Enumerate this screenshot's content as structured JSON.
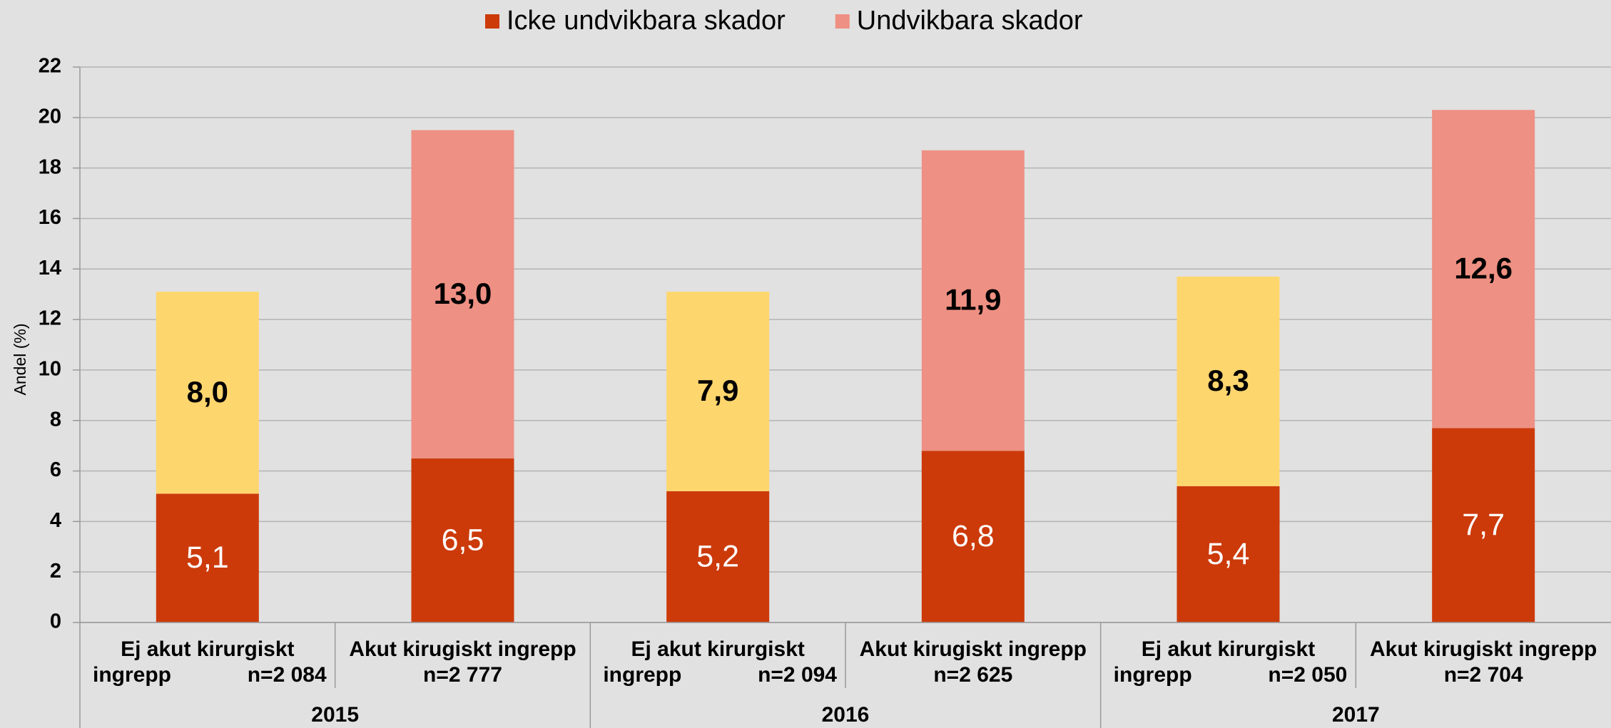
{
  "chart_data": {
    "type": "stacked_bar",
    "categories": [
      [
        "Ej akut kirurgiskt",
        "ingrepp",
        "n=2 084"
      ],
      [
        "Akut kirugiskt ingrepp",
        "n=2 777"
      ],
      [
        "Ej akut kirurgiskt",
        "ingrepp",
        "n=2 094"
      ],
      [
        "Akut kirugiskt ingrepp",
        "n=2 625"
      ],
      [
        "Ej akut kirurgiskt",
        "ingrepp",
        "n=2 050"
      ],
      [
        "Akut kirugiskt ingrepp",
        "n=2 704"
      ]
    ],
    "groups": [
      "2015",
      "2016",
      "2017"
    ],
    "y_label": "Andel (%)",
    "series": [
      {
        "name": "Icke undvikbara skador",
        "color": "#cc3a0a",
        "values": [
          5.1,
          6.5,
          5.2,
          6.8,
          5.4,
          7.7
        ],
        "value_labels": [
          "5,1",
          "6,5",
          "5,2",
          "6,8",
          "5,4",
          "7,7"
        ]
      },
      {
        "name": "Undvikbara skador",
        "color": "#ee9083",
        "colors": [
          "#fed66e",
          "#ee9083",
          "#fed66e",
          "#ee9083",
          "#fed66e",
          "#ee9083"
        ],
        "values": [
          8.0,
          13.0,
          7.9,
          11.9,
          8.3,
          12.6
        ],
        "value_labels": [
          "8,0",
          "13,0",
          "7,9",
          "11,9",
          "8,3",
          "12,6"
        ]
      }
    ],
    "ylim": [
      0,
      22
    ],
    "yticks": [
      0,
      2,
      4,
      6,
      8,
      10,
      12,
      14,
      16,
      18,
      20,
      22
    ],
    "grid": true,
    "legend": "top"
  }
}
